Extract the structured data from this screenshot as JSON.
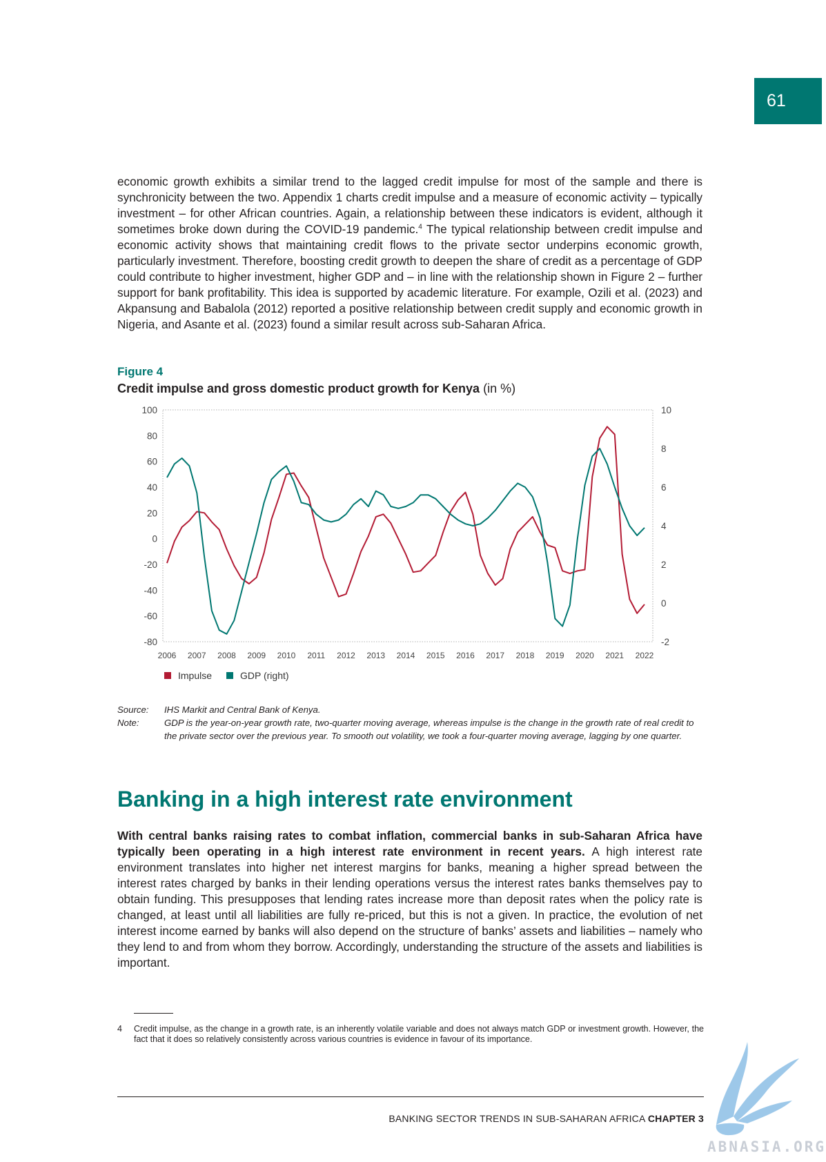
{
  "page_number": "61",
  "intro_paragraph": {
    "part1": "economic growth exhibits a similar trend to the lagged credit impulse for most of the sample and there is synchronicity between the two. Appendix 1 charts credit impulse and a measure of economic activity – typically investment – for other African countries. Again, a relationship between these indicators is evident, although it sometimes broke down during the COVID-19 pandemic.",
    "footnote_ref": "4",
    "part2": " The typical relationship between credit impulse and economic activity shows that maintaining credit flows to the private sector underpins economic growth, particularly investment. Therefore, boosting credit growth to deepen the share of credit as a percentage of GDP could contribute to higher investment, higher GDP and – in line with the relationship shown in Figure 2 – further support for bank profitability. This idea is supported by academic literature. For example, Ozili et al. (2023) and Akpansung and Babalola (2012) reported a positive relationship between credit supply and economic growth in Nigeria, and Asante et al. (2023) found a similar result across sub-Saharan Africa."
  },
  "figure": {
    "label": "Figure 4",
    "title": "Credit impulse and gross domestic product growth for Kenya",
    "unit": "(in %)"
  },
  "chart_data": {
    "type": "line",
    "title": "Credit impulse and gross domestic product growth for Kenya (in %)",
    "x_labels": [
      "2006",
      "2007",
      "2008",
      "2009",
      "2010",
      "2011",
      "2012",
      "2013",
      "2014",
      "2015",
      "2016",
      "2017",
      "2018",
      "2019",
      "2020",
      "2021",
      "2022"
    ],
    "x_range": [
      2006,
      2022
    ],
    "left_axis": {
      "ticks": [
        "100",
        "80",
        "60",
        "40",
        "20",
        "0",
        "-20",
        "-40",
        "-60",
        "-80"
      ],
      "range": [
        -80,
        100
      ]
    },
    "right_axis": {
      "ticks": [
        "10",
        "8",
        "6",
        "4",
        "2",
        "0",
        "-2"
      ],
      "range": [
        -2,
        10
      ]
    },
    "series": [
      {
        "name": "Impulse",
        "axis": "left",
        "color": "#b31b34",
        "points": [
          [
            2006,
            -19
          ],
          [
            2006.25,
            -2
          ],
          [
            2006.5,
            9
          ],
          [
            2006.75,
            14
          ],
          [
            2007,
            21
          ],
          [
            2007.25,
            20
          ],
          [
            2007.5,
            13
          ],
          [
            2007.75,
            7
          ],
          [
            2008,
            -8
          ],
          [
            2008.25,
            -21
          ],
          [
            2008.5,
            -31
          ],
          [
            2008.75,
            -35
          ],
          [
            2009,
            -30
          ],
          [
            2009.25,
            -11
          ],
          [
            2009.5,
            15
          ],
          [
            2009.75,
            32
          ],
          [
            2010,
            50
          ],
          [
            2010.25,
            51
          ],
          [
            2010.5,
            41
          ],
          [
            2010.75,
            32
          ],
          [
            2011,
            8
          ],
          [
            2011.25,
            -15
          ],
          [
            2011.5,
            -30
          ],
          [
            2011.75,
            -45
          ],
          [
            2012,
            -43
          ],
          [
            2012.25,
            -27
          ],
          [
            2012.5,
            -10
          ],
          [
            2012.75,
            2
          ],
          [
            2013,
            17
          ],
          [
            2013.25,
            19
          ],
          [
            2013.5,
            12
          ],
          [
            2013.75,
            0
          ],
          [
            2014,
            -12
          ],
          [
            2014.25,
            -26
          ],
          [
            2014.5,
            -25
          ],
          [
            2014.75,
            -19
          ],
          [
            2015,
            -13
          ],
          [
            2015.25,
            5
          ],
          [
            2015.5,
            21
          ],
          [
            2015.75,
            30
          ],
          [
            2016,
            36
          ],
          [
            2016.25,
            19
          ],
          [
            2016.5,
            -13
          ],
          [
            2016.75,
            -27
          ],
          [
            2017,
            -36
          ],
          [
            2017.25,
            -31
          ],
          [
            2017.5,
            -8
          ],
          [
            2017.75,
            5
          ],
          [
            2018,
            11
          ],
          [
            2018.25,
            17
          ],
          [
            2018.5,
            5
          ],
          [
            2018.75,
            -5
          ],
          [
            2019,
            -7
          ],
          [
            2019.25,
            -25
          ],
          [
            2019.5,
            -27
          ],
          [
            2019.75,
            -25
          ],
          [
            2020,
            -24
          ],
          [
            2020.25,
            48
          ],
          [
            2020.5,
            78
          ],
          [
            2020.75,
            87
          ],
          [
            2021,
            81
          ],
          [
            2021.25,
            -12
          ],
          [
            2021.5,
            -47
          ],
          [
            2021.75,
            -58
          ],
          [
            2022,
            -51
          ]
        ]
      },
      {
        "name": "GDP (right)",
        "axis": "right",
        "color": "#007771",
        "points": [
          [
            2006,
            6.5
          ],
          [
            2006.25,
            7.2
          ],
          [
            2006.5,
            7.5
          ],
          [
            2006.75,
            7.1
          ],
          [
            2007,
            5.7
          ],
          [
            2007.25,
            2.4
          ],
          [
            2007.5,
            -0.4
          ],
          [
            2007.75,
            -1.4
          ],
          [
            2008,
            -1.6
          ],
          [
            2008.25,
            -0.9
          ],
          [
            2008.5,
            0.6
          ],
          [
            2008.75,
            2.1
          ],
          [
            2009,
            3.6
          ],
          [
            2009.25,
            5.2
          ],
          [
            2009.5,
            6.4
          ],
          [
            2009.75,
            6.8
          ],
          [
            2010,
            7.1
          ],
          [
            2010.25,
            6.3
          ],
          [
            2010.5,
            5.2
          ],
          [
            2010.75,
            5.1
          ],
          [
            2011,
            4.6
          ],
          [
            2011.25,
            4.3
          ],
          [
            2011.5,
            4.2
          ],
          [
            2011.75,
            4.3
          ],
          [
            2012,
            4.6
          ],
          [
            2012.25,
            5.1
          ],
          [
            2012.5,
            5.4
          ],
          [
            2012.75,
            5.0
          ],
          [
            2013,
            5.8
          ],
          [
            2013.25,
            5.6
          ],
          [
            2013.5,
            5.0
          ],
          [
            2013.75,
            4.9
          ],
          [
            2014,
            5.0
          ],
          [
            2014.25,
            5.2
          ],
          [
            2014.5,
            5.6
          ],
          [
            2014.75,
            5.6
          ],
          [
            2015,
            5.4
          ],
          [
            2015.25,
            5.0
          ],
          [
            2015.5,
            4.6
          ],
          [
            2015.75,
            4.3
          ],
          [
            2016,
            4.1
          ],
          [
            2016.25,
            4.0
          ],
          [
            2016.5,
            4.1
          ],
          [
            2016.75,
            4.4
          ],
          [
            2017,
            4.8
          ],
          [
            2017.25,
            5.3
          ],
          [
            2017.5,
            5.8
          ],
          [
            2017.75,
            6.2
          ],
          [
            2018,
            6.0
          ],
          [
            2018.25,
            5.5
          ],
          [
            2018.5,
            4.4
          ],
          [
            2018.75,
            2.1
          ],
          [
            2019,
            -0.8
          ],
          [
            2019.25,
            -1.2
          ],
          [
            2019.5,
            -0.1
          ],
          [
            2019.75,
            3.3
          ],
          [
            2020,
            6.1
          ],
          [
            2020.25,
            7.6
          ],
          [
            2020.5,
            8.0
          ],
          [
            2020.75,
            7.2
          ],
          [
            2021,
            6.0
          ],
          [
            2021.25,
            4.9
          ],
          [
            2021.5,
            4.0
          ],
          [
            2021.75,
            3.5
          ],
          [
            2022,
            3.9
          ]
        ]
      }
    ],
    "legend": [
      "Impulse",
      "GDP (right)"
    ],
    "legend_position": "bottom-left",
    "grid": false
  },
  "notes": {
    "source_label": "Source:",
    "source_text": "IHS Markit and Central Bank of Kenya.",
    "note_label": "Note:",
    "note_text": "GDP is the year-on-year growth rate, two-quarter moving average, whereas impulse is the change in the growth rate of real credit to the private sector over the previous year. To smooth out volatility, we took a four-quarter moving average, lagging by one quarter."
  },
  "section": {
    "heading": "Banking in a high interest rate environment",
    "lead": "With central banks raising rates to combat inflation, commercial banks in sub-Saharan Africa have typically been operating in a high interest rate environment in recent years.",
    "body": " A high interest rate environment translates into higher net interest margins for banks, meaning a higher spread between the interest rates charged by banks in their lending operations versus the interest rates banks themselves pay to obtain funding. This presupposes that lending rates increase more than deposit rates when the policy rate is changed, at least until all liabilities are fully re-priced, but this is not a given. In practice, the evolution of net interest income earned by banks will also depend on the structure of banks’ assets and liabilities – namely who they lend to and from whom they borrow. Accordingly, understanding the structure of the assets and liabilities is important."
  },
  "footnote": {
    "number": "4",
    "text": "Credit impulse, as the change in a growth rate, is an inherently volatile variable and does not always match GDP or investment growth. However, the fact that it does so relatively consistently across various countries is evidence in favour of its importance."
  },
  "footer": {
    "running_title": "BANKING SECTOR TRENDS IN SUB-SAHARAN AFRICA",
    "chapter": "CHAPTER 3"
  },
  "watermark": "ABNASIA.ORG"
}
